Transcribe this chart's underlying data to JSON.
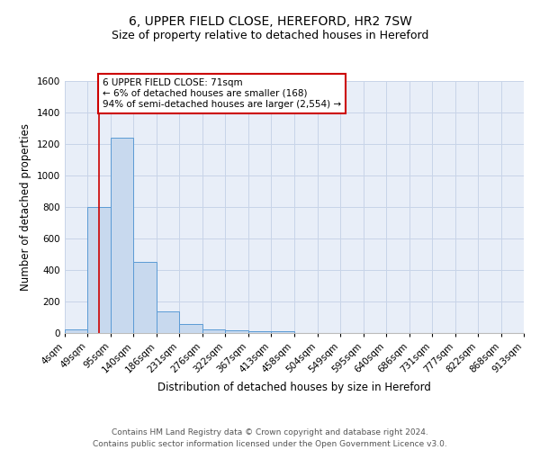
{
  "title": "6, UPPER FIELD CLOSE, HEREFORD, HR2 7SW",
  "subtitle": "Size of property relative to detached houses in Hereford",
  "xlabel": "Distribution of detached houses by size in Hereford",
  "ylabel": "Number of detached properties",
  "footer_line1": "Contains HM Land Registry data © Crown copyright and database right 2024.",
  "footer_line2": "Contains public sector information licensed under the Open Government Licence v3.0.",
  "bin_edges": [
    4,
    49,
    95,
    140,
    186,
    231,
    276,
    322,
    367,
    413,
    458,
    504,
    549,
    595,
    640,
    686,
    731,
    777,
    822,
    868,
    913
  ],
  "bin_labels": [
    "4sqm",
    "49sqm",
    "95sqm",
    "140sqm",
    "186sqm",
    "231sqm",
    "276sqm",
    "322sqm",
    "367sqm",
    "413sqm",
    "458sqm",
    "504sqm",
    "549sqm",
    "595sqm",
    "640sqm",
    "686sqm",
    "731sqm",
    "777sqm",
    "822sqm",
    "868sqm",
    "913sqm"
  ],
  "bar_heights": [
    25,
    800,
    1240,
    450,
    135,
    60,
    25,
    18,
    12,
    12,
    0,
    0,
    0,
    0,
    0,
    0,
    0,
    0,
    0,
    0
  ],
  "bar_color": "#c8d9ee",
  "bar_edge_color": "#5b9bd5",
  "grid_color": "#c8d4e8",
  "background_color": "#e8eef8",
  "property_size": 71,
  "vline_color": "#cc0000",
  "annotation_text": "6 UPPER FIELD CLOSE: 71sqm\n← 6% of detached houses are smaller (168)\n94% of semi-detached houses are larger (2,554) →",
  "annotation_box_color": "#ffffff",
  "annotation_border_color": "#cc0000",
  "ylim": [
    0,
    1600
  ],
  "yticks": [
    0,
    200,
    400,
    600,
    800,
    1000,
    1200,
    1400,
    1600
  ],
  "title_fontsize": 10,
  "subtitle_fontsize": 9,
  "axis_label_fontsize": 8.5,
  "tick_fontsize": 7.5,
  "annotation_fontsize": 7.5,
  "footer_fontsize": 6.5
}
